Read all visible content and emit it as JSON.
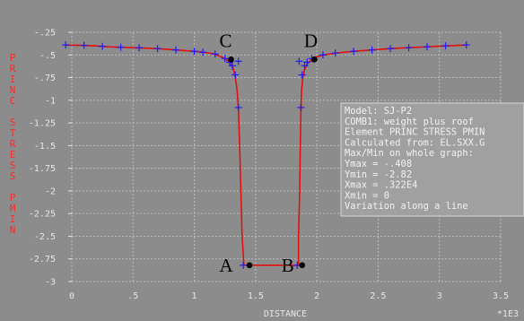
{
  "chart_data": {
    "type": "line",
    "xlabel": "DISTANCE",
    "x_multiplier": "*1E3",
    "ylabel": "PRINC STRESS PMIN",
    "xlim": [
      0,
      3.5
    ],
    "ylim": [
      -3,
      -0.25
    ],
    "x_ticks": [
      "0",
      ".5",
      "1",
      "1.5",
      "2",
      "2.5",
      "3",
      "3.5"
    ],
    "y_ticks": [
      "-.25",
      "-.5",
      "-.75",
      "-1",
      "-1.25",
      "-1.5",
      "-1.75",
      "-2",
      "-2.25",
      "-2.5",
      "-2.75",
      "-3"
    ],
    "grid": true,
    "colors": {
      "background": "#8c8c8c",
      "grid": "#bdbdbd",
      "line": "#e01010",
      "markers": "#1c1cff",
      "info_box": "#a0a0a0",
      "ylabel": "#ff2a2a"
    },
    "series": [
      {
        "values": [
          [
            -0.05,
            -0.39
          ],
          [
            0.1,
            -0.395
          ],
          [
            0.2,
            -0.4
          ],
          [
            0.3,
            -0.41
          ],
          [
            0.4,
            -0.415
          ],
          [
            0.5,
            -0.42
          ],
          [
            0.6,
            -0.425
          ],
          [
            0.7,
            -0.43
          ],
          [
            0.8,
            -0.44
          ],
          [
            0.9,
            -0.45
          ],
          [
            1.0,
            -0.46
          ],
          [
            1.07,
            -0.47
          ],
          [
            1.15,
            -0.485
          ],
          [
            1.22,
            -0.52
          ],
          [
            1.26,
            -0.55
          ],
          [
            1.3,
            -0.6
          ],
          [
            1.32,
            -0.66
          ],
          [
            1.335,
            -0.75
          ],
          [
            1.35,
            -0.9
          ],
          [
            1.36,
            -1.1
          ],
          [
            1.37,
            -1.5
          ],
          [
            1.38,
            -2.0
          ],
          [
            1.39,
            -2.5
          ],
          [
            1.405,
            -2.82
          ],
          [
            1.405,
            -2.82
          ],
          [
            1.41,
            -2.82
          ],
          [
            1.84,
            -2.82
          ],
          [
            1.85,
            -2.82
          ],
          [
            1.85,
            -2.5
          ],
          [
            1.86,
            -2.0
          ],
          [
            1.865,
            -1.5
          ],
          [
            1.87,
            -1.1
          ],
          [
            1.875,
            -0.9
          ],
          [
            1.885,
            -0.75
          ],
          [
            1.9,
            -0.66
          ],
          [
            1.92,
            -0.6
          ],
          [
            1.95,
            -0.56
          ],
          [
            1.99,
            -0.525
          ],
          [
            2.05,
            -0.5
          ],
          [
            2.15,
            -0.48
          ],
          [
            2.3,
            -0.46
          ],
          [
            2.45,
            -0.445
          ],
          [
            2.6,
            -0.43
          ],
          [
            2.75,
            -0.42
          ],
          [
            2.9,
            -0.41
          ],
          [
            3.05,
            -0.4
          ],
          [
            3.22,
            -0.39
          ]
        ],
        "markers": [
          [
            -0.05,
            -0.39
          ],
          [
            0.1,
            -0.395
          ],
          [
            0.25,
            -0.405
          ],
          [
            0.4,
            -0.415
          ],
          [
            0.55,
            -0.42
          ],
          [
            0.7,
            -0.43
          ],
          [
            0.85,
            -0.445
          ],
          [
            1.0,
            -0.46
          ],
          [
            1.07,
            -0.47
          ],
          [
            1.17,
            -0.49
          ],
          [
            1.25,
            -0.54
          ],
          [
            1.29,
            -0.58
          ],
          [
            1.31,
            -0.62
          ],
          [
            1.335,
            -0.72
          ],
          [
            1.36,
            -0.57
          ],
          [
            1.36,
            -1.08
          ],
          [
            1.4,
            -2.82
          ],
          [
            1.84,
            -2.82
          ],
          [
            1.87,
            -1.08
          ],
          [
            1.855,
            -0.57
          ],
          [
            1.88,
            -0.72
          ],
          [
            1.9,
            -0.62
          ],
          [
            1.92,
            -0.58
          ],
          [
            1.96,
            -0.54
          ],
          [
            2.05,
            -0.5
          ],
          [
            2.15,
            -0.48
          ],
          [
            2.3,
            -0.46
          ],
          [
            2.45,
            -0.445
          ],
          [
            2.6,
            -0.43
          ],
          [
            2.75,
            -0.42
          ],
          [
            2.9,
            -0.41
          ],
          [
            3.05,
            -0.4
          ],
          [
            3.22,
            -0.39
          ]
        ]
      }
    ],
    "annotations": [
      {
        "label": "A",
        "x": 1.45,
        "y": -2.82
      },
      {
        "label": "B",
        "x": 1.88,
        "y": -2.82
      },
      {
        "label": "C",
        "x": 1.3,
        "y": -0.55
      },
      {
        "label": "D",
        "x": 1.98,
        "y": -0.55
      }
    ],
    "info_box": {
      "lines": [
        "Model: SJ-P2",
        "COMB1: weight plus roof",
        "Element PRINC STRESS PMIN",
        "Calculated from: EL.SXX.G",
        "Max/Min on whole graph:",
        "Ymax = -.408",
        "Ymin = -2.82",
        "Xmax = .322E4",
        "Xmin = 0",
        "Variation along a line"
      ]
    }
  }
}
